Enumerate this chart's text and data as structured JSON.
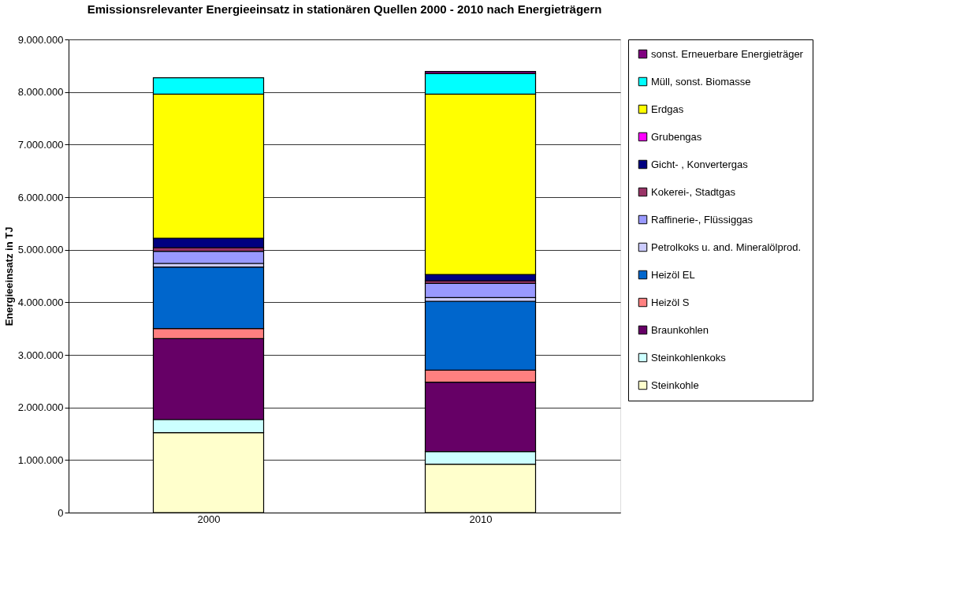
{
  "chart_data": {
    "type": "bar",
    "stacked": true,
    "title": "Emissionsrelevanter Energieeinsatz in stationären Quellen 2000 - 2010 nach Energieträgern",
    "ylabel": "Energieeinsatz in TJ",
    "categories": [
      "2000",
      "2010"
    ],
    "ylim": [
      0,
      9000000
    ],
    "yticks": [
      {
        "value": 0,
        "label": "0"
      },
      {
        "value": 1000000,
        "label": "1.000.000"
      },
      {
        "value": 2000000,
        "label": "2.000.000"
      },
      {
        "value": 3000000,
        "label": "3.000.000"
      },
      {
        "value": 4000000,
        "label": "4.000.000"
      },
      {
        "value": 5000000,
        "label": "5.000.000"
      },
      {
        "value": 6000000,
        "label": "6.000.000"
      },
      {
        "value": 7000000,
        "label": "7.000.000"
      },
      {
        "value": 8000000,
        "label": "8.000.000"
      },
      {
        "value": 9000000,
        "label": "9.000.000"
      }
    ],
    "grid": "y",
    "legend": "right",
    "series": [
      {
        "name": "Steinkohle",
        "color": "#ffffcc",
        "values": [
          1520000,
          920000
        ]
      },
      {
        "name": "Steinkohlenkoks",
        "color": "#ccffff",
        "values": [
          250000,
          240000
        ]
      },
      {
        "name": "Braunkohlen",
        "color": "#660066",
        "values": [
          1540000,
          1320000
        ]
      },
      {
        "name": "Heizöl S",
        "color": "#ff8080",
        "values": [
          190000,
          230000
        ]
      },
      {
        "name": "Heizöl EL",
        "color": "#0066cc",
        "values": [
          1170000,
          1310000
        ]
      },
      {
        "name": "Petrolkoks u. and. Mineralölprod.",
        "color": "#ccccff",
        "values": [
          70000,
          70000
        ]
      },
      {
        "name": "Raffinerie-,  Flüssiggas",
        "color": "#9999ff",
        "values": [
          230000,
          270000
        ]
      },
      {
        "name": "Kokerei-, Stadtgas",
        "color": "#993366",
        "values": [
          70000,
          50000
        ]
      },
      {
        "name": "Gicht- , Konvertergas",
        "color": "#000080",
        "values": [
          180000,
          120000
        ]
      },
      {
        "name": "Grubengas",
        "color": "#ff00ff",
        "values": [
          0,
          0
        ]
      },
      {
        "name": "Erdgas",
        "color": "#ffff00",
        "values": [
          2740000,
          3430000
        ]
      },
      {
        "name": "Müll, sonst. Biomasse",
        "color": "#00ffff",
        "values": [
          310000,
          390000
        ]
      },
      {
        "name": "sonst. Erneuerbare Energieträger",
        "color": "#800080",
        "values": [
          0,
          40000
        ]
      }
    ]
  }
}
